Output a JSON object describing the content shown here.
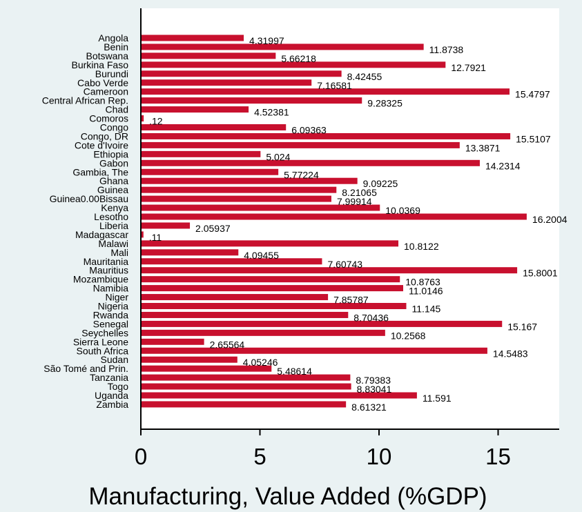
{
  "chart_data": {
    "type": "bar",
    "orientation": "horizontal",
    "xlabel": "Manufacturing, Value Added (%GDP)",
    "ylabel": "",
    "xlim": [
      0,
      17.5
    ],
    "xticks": [
      "0",
      "5",
      "10",
      "15"
    ],
    "grid": false,
    "bar_color": "#c8102e",
    "categories": [
      "Angola",
      "Benin",
      "Botswana",
      "Burkina Faso",
      "Burundi",
      "Cabo Verde",
      "Cameroon",
      "Central African Rep.",
      "Chad",
      "Comoros",
      "Congo",
      "Congo, DR",
      "Cote d'Ivoire",
      "Ethiopia",
      "Gabon",
      "Gambia, The",
      "Ghana",
      "Guinea",
      "Guinea0.00Bissau",
      "Kenya",
      "Lesotho",
      "Liberia",
      "Madagascar",
      "Malawi",
      "Mali",
      "Mauritania",
      "Mauritius",
      "Mozambique",
      "Namibia",
      "Niger",
      "Nigeria",
      "Rwanda",
      "Senegal",
      "Seychelles",
      "Sierra Leone",
      "South Africa",
      "Sudan",
      "São Tomé and Prin.",
      "Tanzania",
      "Togo",
      "Uganda",
      "Zambia"
    ],
    "values": [
      4.31997,
      11.8738,
      5.66218,
      12.7921,
      8.42455,
      7.16581,
      15.4797,
      9.28325,
      4.52381,
      0.12,
      6.09363,
      15.5107,
      13.3871,
      5.024,
      14.2314,
      5.77224,
      9.09225,
      8.21065,
      7.99914,
      10.0369,
      16.2004,
      2.05937,
      0.11,
      10.8122,
      4.09455,
      7.60743,
      15.8001,
      10.8763,
      11.0146,
      7.85787,
      11.145,
      8.70436,
      15.167,
      10.2568,
      2.65564,
      14.5483,
      4.05246,
      5.48614,
      8.79383,
      8.83041,
      11.591,
      8.61321
    ],
    "value_labels": [
      "4.31997",
      "11.8738",
      "5.66218",
      "12.7921",
      "8.42455",
      "7.16581",
      "15.4797",
      "9.28325",
      "4.52381",
      ".12",
      "6.09363",
      "15.5107",
      "13.3871",
      "5.024",
      "14.2314",
      "5.77224",
      "9.09225",
      "8.21065",
      "7.99914",
      "10.0369",
      "16.2004",
      "2.05937",
      ".11",
      "10.8122",
      "4.09455",
      "7.60743",
      "15.8001",
      "10.8763",
      "11.0146",
      "7.85787",
      "11.145",
      "8.70436",
      "15.167",
      "10.2568",
      "2.65564",
      "14.5483",
      "4.05246",
      "5.48614",
      "8.79383",
      "8.83041",
      "11.591",
      "8.61321"
    ]
  }
}
